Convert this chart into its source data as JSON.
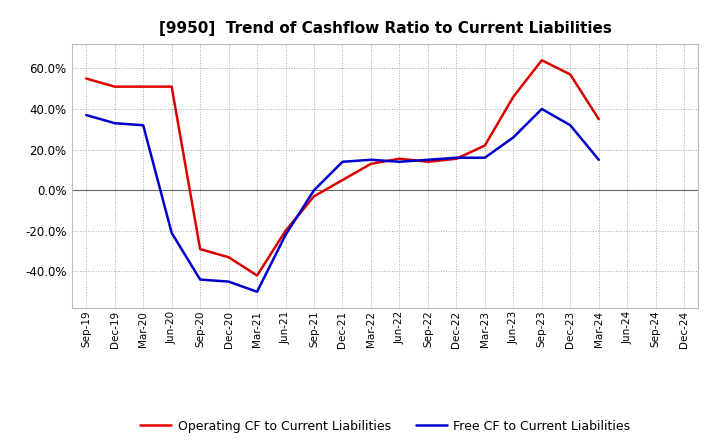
{
  "title": "[9950]  Trend of Cashflow Ratio to Current Liabilities",
  "x_labels": [
    "Sep-19",
    "Dec-19",
    "Mar-20",
    "Jun-20",
    "Sep-20",
    "Dec-20",
    "Mar-21",
    "Jun-21",
    "Sep-21",
    "Dec-21",
    "Mar-22",
    "Jun-22",
    "Sep-22",
    "Dec-22",
    "Mar-23",
    "Jun-23",
    "Sep-23",
    "Dec-23",
    "Mar-24",
    "Jun-24",
    "Sep-24",
    "Dec-24"
  ],
  "operating_cf": [
    0.55,
    0.51,
    0.51,
    0.51,
    -0.29,
    -0.33,
    -0.42,
    -0.2,
    -0.03,
    0.05,
    0.13,
    0.155,
    0.14,
    0.155,
    0.22,
    0.46,
    0.64,
    0.57,
    0.35,
    null,
    null,
    null
  ],
  "free_cf": [
    0.37,
    0.33,
    0.32,
    -0.21,
    -0.44,
    -0.45,
    -0.5,
    -0.22,
    0.0,
    0.14,
    0.15,
    0.14,
    0.15,
    0.16,
    0.16,
    0.26,
    0.4,
    0.32,
    0.15,
    null,
    null,
    null
  ],
  "ylim": [
    -0.58,
    0.72
  ],
  "yticks": [
    -0.4,
    -0.2,
    0.0,
    0.2,
    0.4,
    0.6
  ],
  "operating_color": "#dd0000",
  "free_color": "#0000cc",
  "bg_color": "#ffffff",
  "plot_bg_color": "#ffffff",
  "grid_color": "#aaaaaa",
  "legend_op": "Operating CF to Current Liabilities",
  "legend_free": "Free CF to Current Liabilities",
  "title_fontsize": 11
}
